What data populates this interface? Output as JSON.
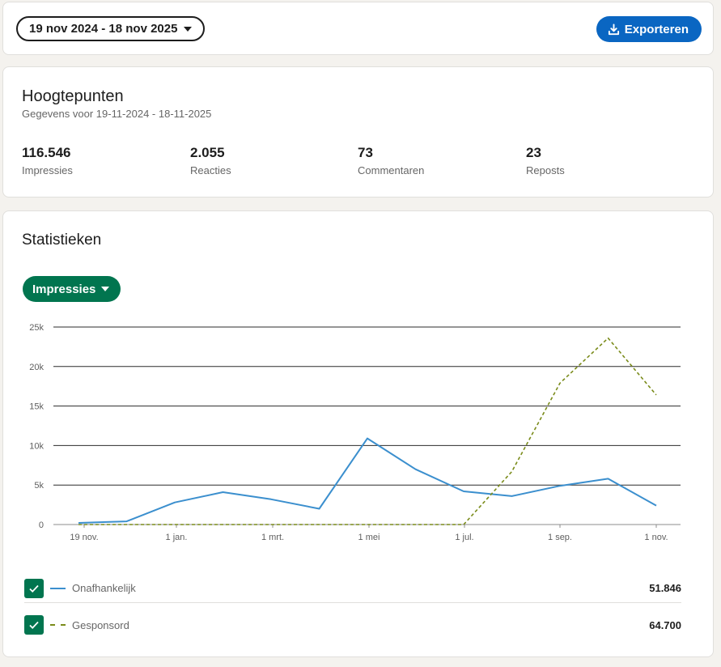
{
  "date_range_label": "19 nov 2024 - 18 nov 2025",
  "export_label": "Exporteren",
  "highlights": {
    "title": "Hoogtepunten",
    "subtitle": "Gegevens voor 19-11-2024 - 18-11-2025",
    "metrics": [
      {
        "value": "116.546",
        "label": "Impressies"
      },
      {
        "value": "2.055",
        "label": "Reacties"
      },
      {
        "value": "73",
        "label": "Commentaren"
      },
      {
        "value": "23",
        "label": "Reposts"
      }
    ]
  },
  "stats": {
    "title": "Statistieken",
    "metric_selector": "Impressies"
  },
  "legend": [
    {
      "name": "Onafhankelijk",
      "total": "51.846",
      "color": "#3b8fce",
      "style": "solid"
    },
    {
      "name": "Gesponsord",
      "total": "64.700",
      "color": "#7a8b1a",
      "style": "dashed"
    }
  ],
  "chart_data": {
    "type": "line",
    "x_tick_labels": [
      "19 nov.",
      "1 jan.",
      "1 mrt.",
      "1 mei",
      "1 jul.",
      "1 sep.",
      "1 nov."
    ],
    "y_tick_labels": [
      "0",
      "5k",
      "10k",
      "15k",
      "20k",
      "25k"
    ],
    "ylim": [
      0,
      25000
    ],
    "grid": true,
    "series": [
      {
        "name": "Onafhankelijk",
        "color": "#3b8fce",
        "dash": false,
        "values": [
          200,
          400,
          2800,
          4100,
          3200,
          2000,
          10900,
          7000,
          4200,
          3600,
          4900,
          5800,
          2400
        ]
      },
      {
        "name": "Gesponsord",
        "color": "#7a8b1a",
        "dash": true,
        "values": [
          0,
          0,
          0,
          0,
          0,
          0,
          0,
          0,
          0,
          6700,
          17900,
          23600,
          16400
        ]
      }
    ]
  }
}
